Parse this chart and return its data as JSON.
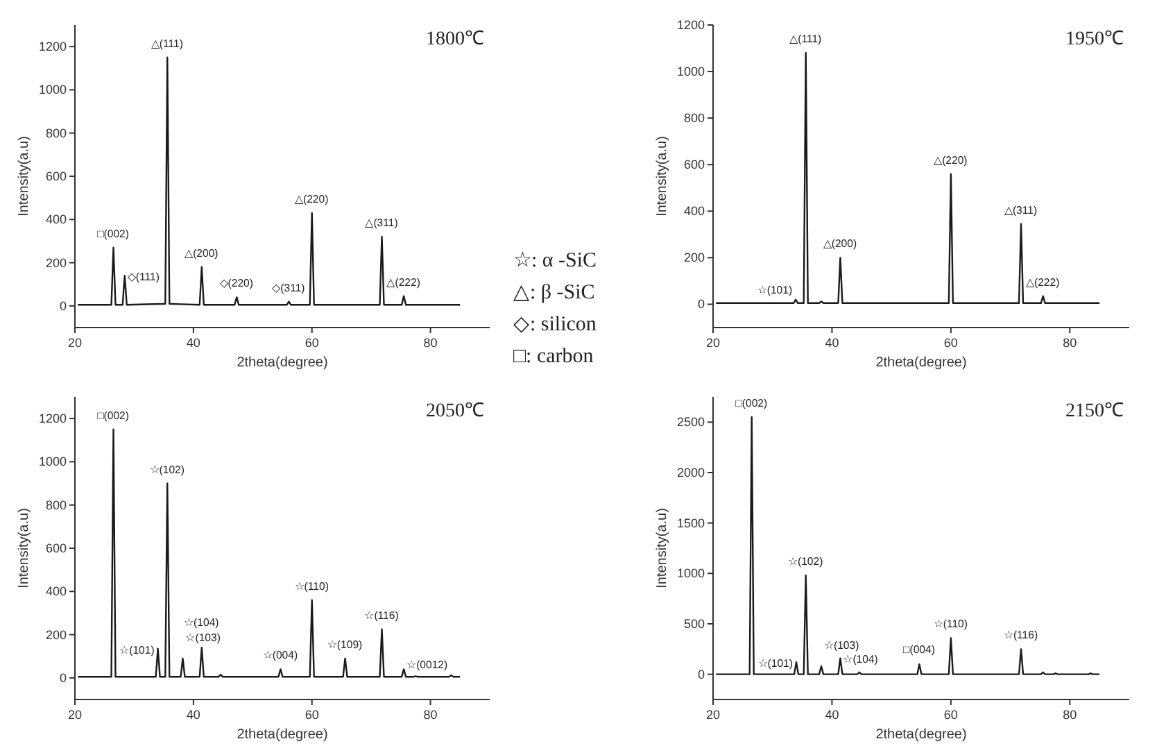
{
  "chart_data": [
    {
      "type": "line",
      "title": "1800℃",
      "xlabel": "2theta(degree)",
      "ylabel": "Intensity(a.u)",
      "xlim": [
        20,
        90
      ],
      "xticks": [
        20,
        40,
        60,
        80
      ],
      "ylim": [
        -100,
        1300
      ],
      "yticks": [
        0,
        200,
        400,
        600,
        800,
        1000,
        1200
      ],
      "grid": false,
      "x": [
        20.5,
        26.15,
        26.5,
        26.85,
        28.05,
        28.4,
        28.75,
        35.25,
        35.6,
        35.95,
        41.05,
        41.4,
        41.75,
        46.95,
        47.3,
        47.65,
        55.75,
        56.1,
        56.45,
        59.65,
        60.0,
        60.35,
        71.45,
        71.8,
        72.15,
        75.15,
        75.5,
        75.85,
        85
      ],
      "series": [
        {
          "color": "#1a1a1a",
          "values": [
            5,
            5,
            270,
            5,
            5,
            140,
            5,
            10,
            1150,
            10,
            5,
            180,
            5,
            5,
            40,
            5,
            5,
            20,
            5,
            5,
            430,
            5,
            5,
            320,
            5,
            5,
            45,
            5,
            5
          ]
        }
      ],
      "annotations": [
        {
          "text": "□(002)",
          "x": 26.5,
          "y": 270
        },
        {
          "text": "◇(111)",
          "x": 28.4,
          "y": 140
        },
        {
          "text": "△(111)",
          "x": 35.6,
          "y": 1150
        },
        {
          "text": "△(200)",
          "x": 41.4,
          "y": 180
        },
        {
          "text": "◇(220)",
          "x": 47.3,
          "y": 40
        },
        {
          "text": "◇(311)",
          "x": 56.1,
          "y": 20
        },
        {
          "text": "△(220)",
          "x": 60,
          "y": 430
        },
        {
          "text": "△(311)",
          "x": 71.8,
          "y": 320
        },
        {
          "text": "△(222)",
          "x": 75.5,
          "y": 45
        }
      ]
    },
    {
      "type": "line",
      "title": "1950℃",
      "xlabel": "2theta(degree)",
      "ylabel": "Intensity(a.u)",
      "xlim": [
        20,
        90
      ],
      "xticks": [
        20,
        40,
        60,
        80
      ],
      "ylim": [
        -100,
        1200
      ],
      "yticks": [
        0,
        200,
        400,
        600,
        800,
        1000,
        1200
      ],
      "grid": false,
      "x": [
        20.5,
        33.55,
        33.9,
        34.25,
        35.25,
        35.6,
        35.95,
        37.85,
        38.2,
        38.55,
        41.05,
        41.4,
        41.75,
        59.65,
        60.0,
        60.35,
        71.45,
        71.8,
        72.15,
        75.15,
        75.5,
        75.85,
        85
      ],
      "series": [
        {
          "color": "#1a1a1a",
          "values": [
            5,
            5,
            20,
            5,
            5,
            1080,
            5,
            5,
            12,
            5,
            5,
            200,
            5,
            5,
            560,
            5,
            5,
            345,
            5,
            5,
            35,
            5,
            5
          ]
        }
      ],
      "annotations": [
        {
          "text": "☆(101)",
          "x": 33.9,
          "y": 20
        },
        {
          "text": "△(111)",
          "x": 35.6,
          "y": 1080
        },
        {
          "text": "△(200)",
          "x": 41.4,
          "y": 200
        },
        {
          "text": "△(220)",
          "x": 60,
          "y": 560
        },
        {
          "text": "△(311)",
          "x": 71.8,
          "y": 345
        },
        {
          "text": "△(222)",
          "x": 75.5,
          "y": 35
        }
      ]
    },
    {
      "type": "other",
      "annotations": [
        "☆: α -SiC",
        "△: β -SiC",
        "◇: silicon",
        "□: carbon"
      ]
    },
    {
      "type": "line",
      "title": "2050℃",
      "xlabel": "2theta(degree)",
      "ylabel": "Intensity(a.u)",
      "xlim": [
        20,
        90
      ],
      "xticks": [
        20,
        40,
        60,
        80
      ],
      "ylim": [
        -100,
        1300
      ],
      "yticks": [
        0,
        200,
        400,
        600,
        800,
        1000,
        1200
      ],
      "grid": false,
      "x": [
        20.5,
        26.15,
        26.5,
        26.85,
        33.65,
        34.0,
        34.35,
        35.25,
        35.6,
        35.95,
        37.85,
        38.2,
        38.55,
        41.05,
        41.4,
        41.75,
        44.25,
        44.6,
        44.95,
        54.35,
        54.7,
        55.05,
        59.65,
        60.0,
        60.35,
        65.25,
        65.6,
        65.95,
        71.45,
        71.8,
        72.15,
        75.15,
        75.5,
        75.85,
        77.15,
        77.5,
        77.85,
        83.15,
        83.5,
        83.85,
        85
      ],
      "series": [
        {
          "color": "#1a1a1a",
          "values": [
            5,
            5,
            1150,
            5,
            5,
            135,
            5,
            5,
            900,
            5,
            5,
            90,
            5,
            5,
            140,
            5,
            5,
            15,
            5,
            5,
            40,
            5,
            5,
            360,
            5,
            5,
            90,
            5,
            5,
            225,
            5,
            5,
            40,
            5,
            5,
            8,
            5,
            5,
            12,
            5,
            5
          ]
        }
      ],
      "annotations": [
        {
          "text": "□(002)",
          "x": 26.5,
          "y": 1150
        },
        {
          "text": "☆(101)",
          "x": 34,
          "y": 135
        },
        {
          "text": "☆(102)",
          "x": 35.6,
          "y": 900
        },
        {
          "text": "☆(103)",
          "x": 38.2,
          "y": 90
        },
        {
          "text": "☆(104)",
          "x": 41.4,
          "y": 140
        },
        {
          "text": "☆(004)",
          "x": 54.7,
          "y": 40
        },
        {
          "text": "☆(110)",
          "x": 60,
          "y": 360
        },
        {
          "text": "☆(109)",
          "x": 65.6,
          "y": 90
        },
        {
          "text": "☆(116)",
          "x": 71.8,
          "y": 225
        },
        {
          "text": "☆(0012)",
          "x": 75.5,
          "y": 40
        }
      ]
    },
    {
      "type": "line",
      "title": "2150℃",
      "xlabel": "2theta(degree)",
      "ylabel": "Intensity(a.u)",
      "xlim": [
        20,
        90
      ],
      "xticks": [
        20,
        40,
        60,
        80
      ],
      "ylim": [
        -250,
        2750
      ],
      "yticks": [
        0,
        500,
        1000,
        1500,
        2000,
        2500
      ],
      "grid": false,
      "x": [
        20.5,
        26.15,
        26.5,
        26.85,
        33.65,
        34.0,
        34.35,
        35.25,
        35.6,
        35.95,
        37.85,
        38.2,
        38.55,
        41.05,
        41.4,
        41.75,
        44.25,
        44.6,
        44.95,
        54.35,
        54.7,
        55.05,
        59.65,
        60.0,
        60.35,
        71.45,
        71.8,
        72.15,
        75.15,
        75.5,
        75.85,
        77.25,
        77.6,
        77.95,
        83.15,
        83.5,
        83.85,
        85
      ],
      "series": [
        {
          "color": "#1a1a1a",
          "values": [
            0,
            0,
            2550,
            0,
            0,
            120,
            0,
            0,
            980,
            0,
            0,
            80,
            0,
            0,
            160,
            0,
            0,
            20,
            0,
            0,
            100,
            0,
            0,
            360,
            0,
            0,
            250,
            0,
            0,
            20,
            0,
            0,
            10,
            0,
            0,
            10,
            0,
            0
          ]
        }
      ],
      "annotations": [
        {
          "text": "□(002)",
          "x": 26.5,
          "y": 2550
        },
        {
          "text": "☆(101)",
          "x": 34,
          "y": 120
        },
        {
          "text": "☆(102)",
          "x": 35.6,
          "y": 980
        },
        {
          "text": "☆(103)",
          "x": 38.2,
          "y": 80
        },
        {
          "text": "☆(104)",
          "x": 41.4,
          "y": 160
        },
        {
          "text": "□(004)",
          "x": 54.7,
          "y": 105
        },
        {
          "text": "☆(110)",
          "x": 60,
          "y": 360
        },
        {
          "text": "☆(116)",
          "x": 71.8,
          "y": 250
        }
      ]
    }
  ]
}
